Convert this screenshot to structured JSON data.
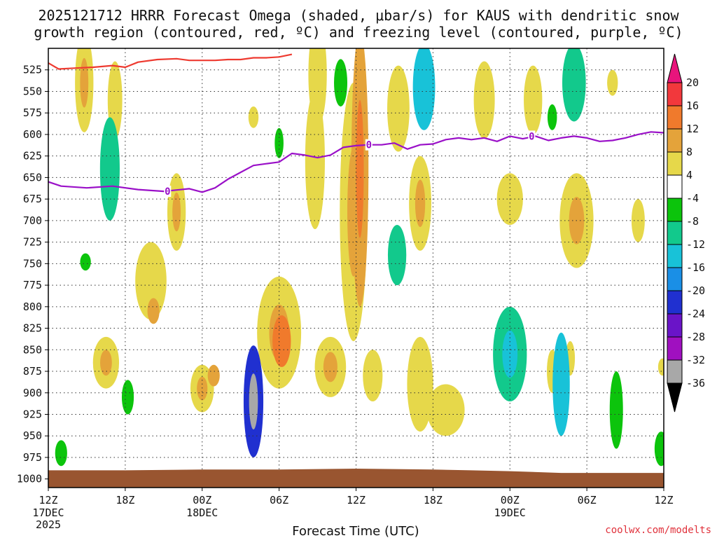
{
  "chart_data": {
    "type": "heatmap",
    "title_line1": "2025121712 HRRR Forecast Omega (shaded, μbar/s) for KAUS with dendritic snow",
    "title_line2": "growth region (contoured, red, ºC) and freezing level (contoured, purple, ºC)",
    "xlabel": "Forecast Time (UTC)",
    "credit": "coolwx.com/modelts",
    "xlim": [
      0,
      48
    ],
    "ylim": [
      500,
      1010
    ],
    "x_ticks": [
      {
        "x": 0,
        "label": "12Z",
        "sub": "17DEC",
        "sub2": "2025"
      },
      {
        "x": 6,
        "label": "18Z"
      },
      {
        "x": 12,
        "label": "00Z",
        "sub": "18DEC"
      },
      {
        "x": 18,
        "label": "06Z"
      },
      {
        "x": 24,
        "label": "12Z"
      },
      {
        "x": 30,
        "label": "18Z"
      },
      {
        "x": 36,
        "label": "00Z",
        "sub": "19DEC"
      },
      {
        "x": 42,
        "label": "06Z"
      },
      {
        "x": 48,
        "label": "12Z"
      }
    ],
    "y_ticks": [
      525,
      550,
      575,
      600,
      625,
      650,
      675,
      700,
      725,
      750,
      775,
      800,
      825,
      850,
      875,
      900,
      925,
      950,
      975,
      1000
    ],
    "colorbar": {
      "labels": [
        "20",
        "16",
        "12",
        "8",
        "4",
        "-4",
        "-8",
        "-12",
        "-16",
        "-20",
        "-24",
        "-28",
        "-32",
        "-36"
      ],
      "levels": [
        {
          "range": "16 to 20",
          "color": "#f2383c"
        },
        {
          "range": "12 to 16",
          "color": "#f07a2c"
        },
        {
          "range": "8 to 12",
          "color": "#e4a33a"
        },
        {
          "range": "4 to 8",
          "color": "#e6d84a"
        },
        {
          "range": "-4 to 4",
          "color": "#ffffff"
        },
        {
          "range": "-8 to -4",
          "color": "#0cc40c"
        },
        {
          "range": "-12 to -8",
          "color": "#12c98c"
        },
        {
          "range": "-16 to -12",
          "color": "#18c2d8"
        },
        {
          "range": "-20 to -16",
          "color": "#1a8fe6"
        },
        {
          "range": "-24 to -20",
          "color": "#2030d0"
        },
        {
          "range": "-28 to -24",
          "color": "#6a14c8"
        },
        {
          "range": "-32 to -28",
          "color": "#a010c0"
        },
        {
          "range": "-36 to -32",
          "color": "#a8a8a8"
        }
      ],
      "top_color": "#e8147c",
      "bottom_color": "#000000"
    },
    "freezing_level": {
      "label": "0",
      "color": "#9a10c8",
      "x": [
        0,
        1,
        3,
        5,
        7,
        9,
        11,
        12,
        13,
        14,
        15,
        16,
        17,
        18,
        19,
        20,
        21,
        22,
        23,
        24,
        25,
        26,
        27,
        28,
        29,
        30,
        31,
        32,
        33,
        34,
        35,
        36,
        37,
        38,
        39,
        40,
        41,
        42,
        43,
        44,
        45,
        46,
        47,
        48
      ],
      "p": [
        655,
        660,
        662,
        660,
        664,
        666,
        663,
        667,
        662,
        652,
        644,
        636,
        634,
        632,
        622,
        624,
        627,
        624,
        615,
        613,
        612,
        612,
        610,
        617,
        612,
        611,
        606,
        604,
        606,
        604,
        608,
        602,
        605,
        602,
        607,
        604,
        602,
        604,
        608,
        607,
        604,
        600,
        597,
        598
      ]
    },
    "dgz_top": {
      "color": "#ee3a30",
      "x": [
        0,
        0.8,
        2,
        3.5,
        5,
        6,
        7,
        8.5,
        10,
        11,
        12,
        13,
        14,
        15,
        16,
        17,
        18,
        19
      ],
      "p": [
        517,
        524,
        523,
        522,
        520,
        522,
        516,
        513,
        512,
        514,
        514,
        514,
        513,
        513,
        511,
        511,
        510,
        507
      ]
    },
    "omega_cells": [
      {
        "x": 2.8,
        "p": 540,
        "w": 1.0,
        "h": 115,
        "v": 5,
        "peak": 8
      },
      {
        "x": 5.2,
        "p": 560,
        "w": 0.7,
        "h": 90,
        "v": 5
      },
      {
        "x": 4.5,
        "p": 865,
        "w": 1.6,
        "h": 60,
        "v": 6,
        "peak": 9
      },
      {
        "x": 8.0,
        "p": 770,
        "w": 2.0,
        "h": 90,
        "v": 5
      },
      {
        "x": 8.2,
        "p": 805,
        "w": 0.5,
        "h": 30,
        "v": 8
      },
      {
        "x": 10.0,
        "p": 690,
        "w": 1.0,
        "h": 90,
        "v": 5,
        "peak": 9
      },
      {
        "x": 12.0,
        "p": 895,
        "w": 1.4,
        "h": 55,
        "v": 6,
        "peak": 11
      },
      {
        "x": 12.9,
        "p": 880,
        "w": 0.5,
        "h": 25,
        "v": 8
      },
      {
        "x": 16.0,
        "p": 580,
        "w": 0.35,
        "h": 25,
        "v": 5
      },
      {
        "x": 18.0,
        "p": 830,
        "w": 3.0,
        "h": 130,
        "v": 7,
        "peak": 11
      },
      {
        "x": 18.2,
        "p": 840,
        "w": 1.0,
        "h": 60,
        "v": 13
      },
      {
        "x": 20.8,
        "p": 630,
        "w": 1.1,
        "h": 160,
        "v": 5
      },
      {
        "x": 22.0,
        "p": 870,
        "w": 2.0,
        "h": 70,
        "v": 6,
        "peak": 9
      },
      {
        "x": 23.8,
        "p": 690,
        "w": 1.7,
        "h": 300,
        "v": 6,
        "peak": 10
      },
      {
        "x": 24.3,
        "p": 640,
        "w": 0.9,
        "h": 320,
        "v": 10,
        "peak": 13
      },
      {
        "x": 21.0,
        "p": 530,
        "w": 1.0,
        "h": 120,
        "v": 5
      },
      {
        "x": 25.3,
        "p": 880,
        "w": 1.1,
        "h": 60,
        "v": 5
      },
      {
        "x": 27.3,
        "p": 570,
        "w": 1.3,
        "h": 100,
        "v": 5
      },
      {
        "x": 29.0,
        "p": 680,
        "w": 1.3,
        "h": 110,
        "v": 6,
        "peak": 10
      },
      {
        "x": 29.0,
        "p": 890,
        "w": 1.6,
        "h": 110,
        "v": 5
      },
      {
        "x": 31.0,
        "p": 920,
        "w": 2.5,
        "h": 60,
        "v": 5
      },
      {
        "x": 34.0,
        "p": 560,
        "w": 1.2,
        "h": 90,
        "v": 5
      },
      {
        "x": 36.0,
        "p": 675,
        "w": 1.6,
        "h": 60,
        "v": 5
      },
      {
        "x": 37.8,
        "p": 560,
        "w": 1.0,
        "h": 80,
        "v": 5
      },
      {
        "x": 41.2,
        "p": 700,
        "w": 2.2,
        "h": 110,
        "v": 6,
        "peak": 9
      },
      {
        "x": 44.0,
        "p": 540,
        "w": 0.4,
        "h": 30,
        "v": 5
      },
      {
        "x": 46.0,
        "p": 700,
        "w": 0.6,
        "h": 50,
        "v": 5
      },
      {
        "x": 40.7,
        "p": 860,
        "w": 0.3,
        "h": 40,
        "v": 5
      },
      {
        "x": 39.3,
        "p": 875,
        "w": 0.4,
        "h": 50,
        "v": 5
      },
      {
        "x": 47.9,
        "p": 870,
        "w": 0.25,
        "h": 20,
        "v": 5
      }
    ],
    "omega_neg_cells": [
      {
        "x": 4.8,
        "p": 640,
        "w": 1.1,
        "h": 120,
        "v": -10
      },
      {
        "x": 2.9,
        "p": 748,
        "w": 0.4,
        "h": 20,
        "v": -6
      },
      {
        "x": 1.0,
        "p": 970,
        "w": 0.5,
        "h": 30,
        "v": -6
      },
      {
        "x": 6.2,
        "p": 905,
        "w": 0.5,
        "h": 40,
        "v": -6
      },
      {
        "x": 16.0,
        "p": 910,
        "w": 1.1,
        "h": 130,
        "v": -22,
        "core": -34
      },
      {
        "x": 18.0,
        "p": 610,
        "w": 0.25,
        "h": 35,
        "v": -6
      },
      {
        "x": 22.8,
        "p": 540,
        "w": 0.6,
        "h": 55,
        "v": -6
      },
      {
        "x": 27.2,
        "p": 740,
        "w": 1.0,
        "h": 70,
        "v": -8
      },
      {
        "x": 29.3,
        "p": 545,
        "w": 1.3,
        "h": 100,
        "v": -12
      },
      {
        "x": 36.0,
        "p": 855,
        "w": 2.2,
        "h": 110,
        "v": -10,
        "core": -15
      },
      {
        "x": 39.3,
        "p": 580,
        "w": 0.3,
        "h": 30,
        "v": -6
      },
      {
        "x": 41.0,
        "p": 540,
        "w": 1.4,
        "h": 90,
        "v": -10
      },
      {
        "x": 40.0,
        "p": 890,
        "w": 0.9,
        "h": 120,
        "v": -12
      },
      {
        "x": 44.3,
        "p": 920,
        "w": 0.6,
        "h": 90,
        "v": -6
      },
      {
        "x": 47.8,
        "p": 965,
        "w": 0.6,
        "h": 40,
        "v": -6
      }
    ],
    "terrain": {
      "color": "#995530",
      "x": [
        0,
        6,
        12,
        18,
        24,
        30,
        33,
        36,
        40,
        44,
        48
      ],
      "p": [
        990,
        990,
        989,
        989,
        988,
        989,
        990,
        991,
        993,
        993,
        993
      ]
    }
  }
}
